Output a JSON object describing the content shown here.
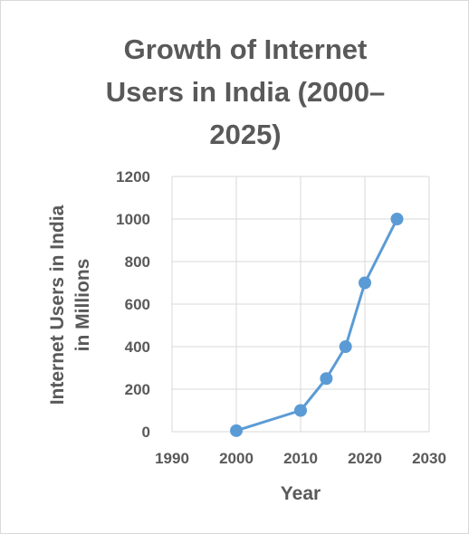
{
  "chart_data": {
    "type": "scatter",
    "title_lines": [
      "Growth of Internet",
      "Users in India (2000–",
      "2025)"
    ],
    "xlabel": "Year",
    "ylabel_lines": [
      "Internet Users in India",
      "in Millions"
    ],
    "xlim": [
      1990,
      2030
    ],
    "ylim": [
      0,
      1200
    ],
    "x_ticks": [
      1990,
      2000,
      2010,
      2020,
      2030
    ],
    "y_ticks": [
      0,
      200,
      400,
      600,
      800,
      1000,
      1200
    ],
    "grid": true,
    "legend": "none",
    "series": [
      {
        "color": "#5b9bd5",
        "points": [
          {
            "x": 2000,
            "y": 5
          },
          {
            "x": 2010,
            "y": 100
          },
          {
            "x": 2014,
            "y": 250
          },
          {
            "x": 2017,
            "y": 400
          },
          {
            "x": 2020,
            "y": 700
          },
          {
            "x": 2025,
            "y": 1000
          }
        ]
      }
    ]
  }
}
